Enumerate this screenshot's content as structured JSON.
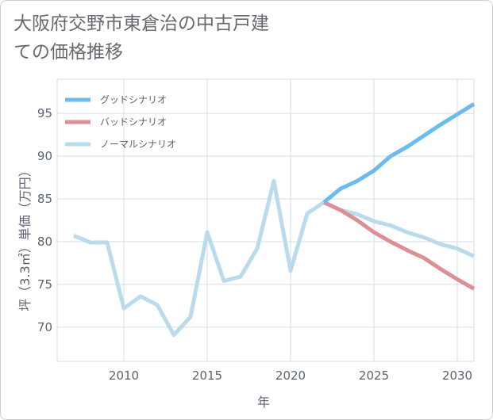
{
  "chart_data": {
    "type": "line",
    "title": "大阪府交野市東倉治の中古戸建ての価格推移",
    "xlabel": "年",
    "ylabel": "坪（3.3㎡）単価（万円）",
    "xlim": [
      2006,
      2031
    ],
    "ylim": [
      66,
      99
    ],
    "xticks": [
      2010,
      2015,
      2020,
      2025,
      2030
    ],
    "yticks": [
      70,
      75,
      80,
      85,
      90,
      95
    ],
    "grid": true,
    "legend_position": "top-left",
    "series": [
      {
        "name": "グッドシナリオ",
        "color": "#6bbbee",
        "x": [
          2022,
          2023,
          2024,
          2025,
          2026,
          2027,
          2028,
          2029,
          2030,
          2031
        ],
        "values": [
          84.6,
          86.2,
          87.1,
          88.3,
          90.0,
          91.1,
          92.4,
          93.7,
          94.9,
          96.1
        ]
      },
      {
        "name": "バッドシナリオ",
        "color": "#dc8f95",
        "x": [
          2022,
          2023,
          2024,
          2025,
          2026,
          2027,
          2028,
          2029,
          2030,
          2031
        ],
        "values": [
          84.6,
          83.7,
          82.5,
          81.1,
          80.0,
          79.0,
          78.1,
          76.8,
          75.6,
          74.5
        ]
      },
      {
        "name": "ノーマルシナリオ",
        "color": "#badbec",
        "x": [
          2007,
          2008,
          2009,
          2010,
          2011,
          2012,
          2013,
          2014,
          2015,
          2016,
          2017,
          2018,
          2019,
          2020,
          2021,
          2022,
          2023,
          2024,
          2025,
          2026,
          2027,
          2028,
          2029,
          2030,
          2031
        ],
        "values": [
          80.7,
          79.9,
          79.9,
          72.2,
          73.6,
          72.6,
          69.1,
          71.2,
          81.1,
          75.4,
          75.9,
          79.2,
          87.1,
          76.6,
          83.3,
          84.6,
          83.7,
          83.2,
          82.4,
          81.9,
          81.1,
          80.5,
          79.7,
          79.2,
          78.3
        ]
      }
    ]
  }
}
